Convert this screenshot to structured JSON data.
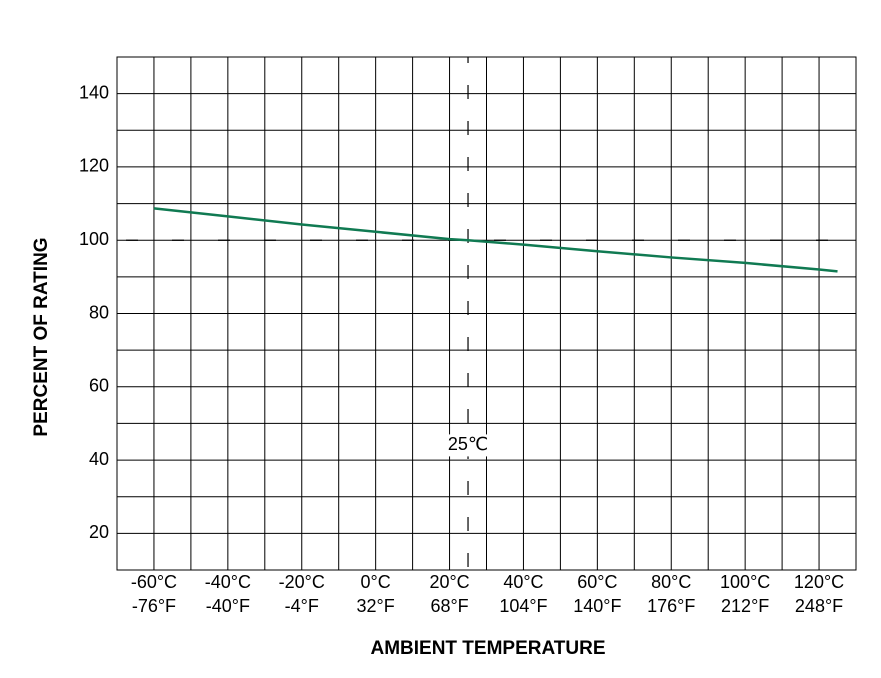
{
  "chart_data": {
    "type": "line",
    "xlabel": "AMBIENT TEMPERATURE",
    "ylabel": "PERCENT OF RATING",
    "xlim": [
      -70,
      130
    ],
    "ylim": [
      10,
      150
    ],
    "xticks": [
      {
        "value": -60,
        "label": "-60°C",
        "label2": "-76°F"
      },
      {
        "value": -40,
        "label": "-40°C",
        "label2": "-40°F"
      },
      {
        "value": -20,
        "label": "-20°C",
        "label2": "-4°F"
      },
      {
        "value": 0,
        "label": "0°C",
        "label2": "32°F"
      },
      {
        "value": 20,
        "label": "20°C",
        "label2": "68°F"
      },
      {
        "value": 40,
        "label": "40°C",
        "label2": "104°F"
      },
      {
        "value": 60,
        "label": "60°C",
        "label2": "140°F"
      },
      {
        "value": 80,
        "label": "80°C",
        "label2": "176°F"
      },
      {
        "value": 100,
        "label": "100°C",
        "label2": "212°F"
      },
      {
        "value": 120,
        "label": "120°C",
        "label2": "248°F"
      }
    ],
    "yticks": [
      20,
      40,
      60,
      80,
      100,
      120,
      140
    ],
    "grid": true,
    "minor_grid": true,
    "reference_x": 25,
    "reference_y": 100,
    "annotation": {
      "text": "25℃",
      "x": 25,
      "y": 44
    },
    "series": [
      {
        "color": "#107a52",
        "x": [
          -60,
          -40,
          -20,
          0,
          20,
          25,
          40,
          60,
          80,
          100,
          120,
          125
        ],
        "values": [
          108.7,
          106.5,
          104.3,
          102.3,
          100.3,
          100,
          98.8,
          97,
          95.3,
          93.8,
          92,
          91.5
        ]
      }
    ]
  }
}
